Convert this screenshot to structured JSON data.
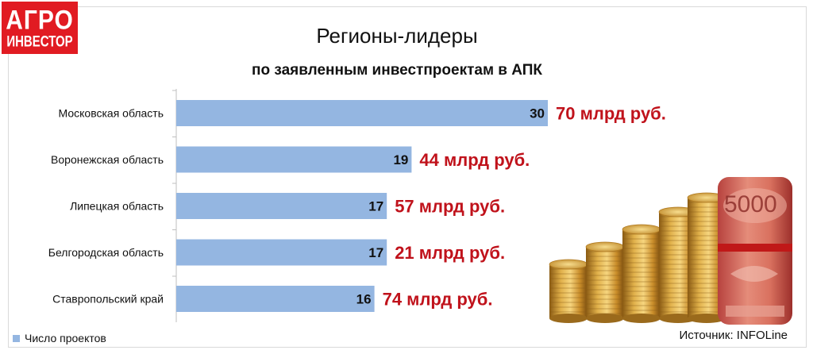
{
  "logo": {
    "line1": "АГРО",
    "line2": "ИНВЕСТОР"
  },
  "title": "Регионы-лидеры",
  "subtitle": "по заявленным инвестпроектам в АПК",
  "legend_label": "Число проектов",
  "source": "Источник: INFOLine",
  "colors": {
    "bar": "#94b6e1",
    "amount": "#c0121b",
    "logo": "#e11b22"
  },
  "illustration": "coin-stacks-and-banknote-roll",
  "chart_data": {
    "type": "bar",
    "orientation": "horizontal",
    "categories": [
      "Московская область",
      "Воронежская область",
      "Липецкая область",
      "Белгородская область",
      "Ставропольский край"
    ],
    "series": [
      {
        "name": "Число проектов",
        "values": [
          30,
          19,
          17,
          17,
          16
        ]
      }
    ],
    "annotations": [
      "70 млрд руб.",
      "44 млрд руб.",
      "57 млрд руб.",
      "21 млрд руб.",
      "74 млрд руб."
    ],
    "xlim": [
      0,
      30
    ],
    "grid": false,
    "legend_position": "bottom-left"
  }
}
